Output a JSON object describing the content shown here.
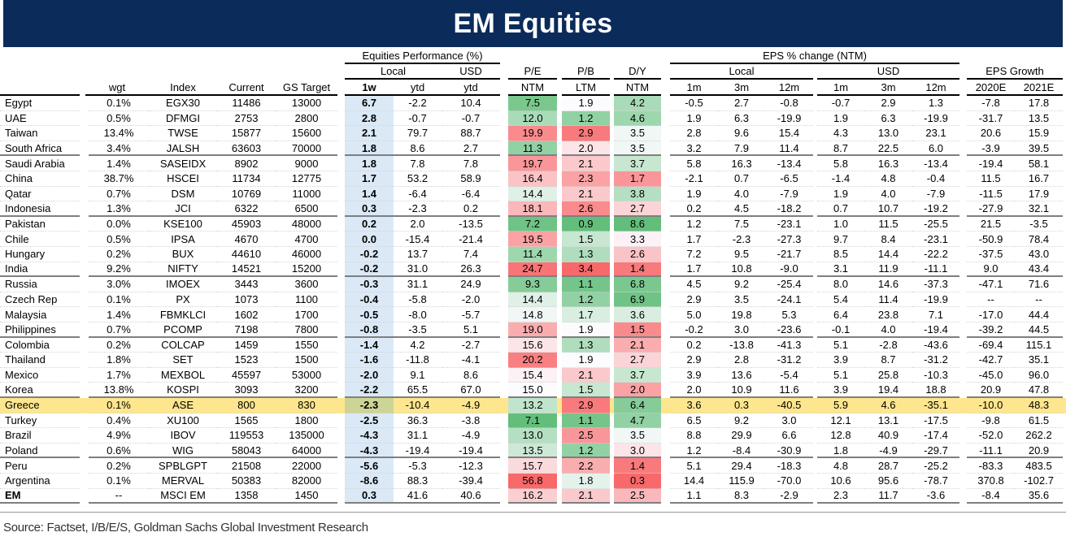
{
  "title": "EM Equities",
  "header": {
    "group_equities": "Equities Performance (%)",
    "group_eps_change": "EPS % change (NTM)",
    "sub_local": "Local",
    "sub_usd": "USD",
    "sub_pe": "P/E",
    "sub_pb": "P/B",
    "sub_dy": "D/Y",
    "sub_eps_local": "Local",
    "sub_eps_usd": "USD",
    "sub_eps_growth": "EPS Growth",
    "columns": [
      "",
      "wgt",
      "Index",
      "Current",
      "GS Target",
      "1w",
      "ytd",
      "ytd",
      "NTM",
      "LTM",
      "NTM",
      "1m",
      "3m",
      "12m",
      "1m",
      "3m",
      "12m",
      "2020E",
      "2021E"
    ]
  },
  "colors": {
    "title_bg": "#0b2b5a",
    "heat_good": "#63be7b",
    "heat_mid": "#fcfcff",
    "heat_bad": "#f8696b",
    "week_bg": "#dbe9f7",
    "highlight": "#fde68e"
  },
  "chart_data": {
    "type": "table",
    "heatmap_columns": {
      "P/E NTM": "low-green",
      "P/B LTM": "low-green",
      "D/Y NTM": "high-green"
    },
    "highlighted_row": "Greece",
    "rows": [
      [
        "Egypt",
        "0.1%",
        "EGX30",
        "11486",
        "13000",
        "6.7",
        "-2.2",
        "10.4",
        "7.5",
        "1.9",
        "4.2",
        "-0.5",
        "2.7",
        "-0.8",
        "-0.7",
        "2.9",
        "1.3",
        "-7.8",
        "17.8"
      ],
      [
        "UAE",
        "0.5%",
        "DFMGI",
        "2753",
        "2800",
        "2.8",
        "-0.7",
        "-0.7",
        "12.0",
        "1.2",
        "4.6",
        "1.9",
        "6.3",
        "-19.9",
        "1.9",
        "6.3",
        "-19.9",
        "-31.7",
        "13.5"
      ],
      [
        "Taiwan",
        "13.4%",
        "TWSE",
        "15877",
        "15600",
        "2.1",
        "79.7",
        "88.7",
        "19.9",
        "2.9",
        "3.5",
        "2.8",
        "9.6",
        "15.4",
        "4.3",
        "13.0",
        "23.1",
        "20.6",
        "15.9"
      ],
      [
        "South Africa",
        "3.4%",
        "JALSH",
        "63603",
        "70000",
        "1.8",
        "8.6",
        "2.7",
        "11.3",
        "2.0",
        "3.5",
        "3.2",
        "7.9",
        "11.4",
        "8.7",
        "22.5",
        "6.0",
        "-3.9",
        "39.5"
      ],
      [
        "Saudi Arabia",
        "1.4%",
        "SASEIDX",
        "8902",
        "9000",
        "1.8",
        "7.8",
        "7.8",
        "19.7",
        "2.1",
        "3.7",
        "5.8",
        "16.3",
        "-13.4",
        "5.8",
        "16.3",
        "-13.4",
        "-19.4",
        "58.1"
      ],
      [
        "China",
        "38.7%",
        "HSCEI",
        "11734",
        "12775",
        "1.7",
        "53.2",
        "58.9",
        "16.4",
        "2.3",
        "1.7",
        "-2.1",
        "0.7",
        "-6.5",
        "-1.4",
        "4.8",
        "-0.4",
        "11.5",
        "16.7"
      ],
      [
        "Qatar",
        "0.7%",
        "DSM",
        "10769",
        "11000",
        "1.4",
        "-6.4",
        "-6.4",
        "14.4",
        "2.1",
        "3.8",
        "1.9",
        "4.0",
        "-7.9",
        "1.9",
        "4.0",
        "-7.9",
        "-11.5",
        "17.9"
      ],
      [
        "Indonesia",
        "1.3%",
        "JCI",
        "6322",
        "6500",
        "0.3",
        "-2.3",
        "0.2",
        "18.1",
        "2.6",
        "2.7",
        "0.2",
        "4.5",
        "-18.2",
        "0.7",
        "10.7",
        "-19.2",
        "-27.9",
        "32.1"
      ],
      [
        "Pakistan",
        "0.0%",
        "KSE100",
        "45903",
        "48000",
        "0.2",
        "2.0",
        "-13.5",
        "7.2",
        "0.9",
        "8.6",
        "1.2",
        "7.5",
        "-23.1",
        "1.0",
        "11.5",
        "-25.5",
        "21.5",
        "-3.5"
      ],
      [
        "Chile",
        "0.5%",
        "IPSA",
        "4670",
        "4700",
        "0.0",
        "-15.4",
        "-21.4",
        "19.5",
        "1.5",
        "3.3",
        "1.7",
        "-2.3",
        "-27.3",
        "9.7",
        "8.4",
        "-23.1",
        "-50.9",
        "78.4"
      ],
      [
        "Hungary",
        "0.2%",
        "BUX",
        "44610",
        "46000",
        "-0.2",
        "13.7",
        "7.4",
        "11.4",
        "1.3",
        "2.6",
        "7.2",
        "9.5",
        "-21.7",
        "8.5",
        "14.4",
        "-22.2",
        "-37.5",
        "43.0"
      ],
      [
        "India",
        "9.2%",
        "NIFTY",
        "14521",
        "15200",
        "-0.2",
        "31.0",
        "26.3",
        "24.7",
        "3.4",
        "1.4",
        "1.7",
        "10.8",
        "-9.0",
        "3.1",
        "11.9",
        "-11.1",
        "9.0",
        "43.4"
      ],
      [
        "Russia",
        "3.0%",
        "IMOEX",
        "3443",
        "3600",
        "-0.3",
        "31.1",
        "24.9",
        "9.3",
        "1.1",
        "6.8",
        "4.5",
        "9.2",
        "-25.4",
        "8.0",
        "14.6",
        "-37.3",
        "-47.1",
        "71.6"
      ],
      [
        "Czech Rep",
        "0.1%",
        "PX",
        "1073",
        "1100",
        "-0.4",
        "-5.8",
        "-2.0",
        "14.4",
        "1.2",
        "6.9",
        "2.9",
        "3.5",
        "-24.1",
        "5.4",
        "11.4",
        "-19.9",
        "--",
        "--"
      ],
      [
        "Malaysia",
        "1.4%",
        "FBMKLCI",
        "1602",
        "1700",
        "-0.5",
        "-8.0",
        "-5.7",
        "14.8",
        "1.7",
        "3.6",
        "5.0",
        "19.8",
        "5.3",
        "6.4",
        "23.8",
        "7.1",
        "-17.0",
        "44.4"
      ],
      [
        "Philippines",
        "0.7%",
        "PCOMP",
        "7198",
        "7800",
        "-0.8",
        "-3.5",
        "5.1",
        "19.0",
        "1.9",
        "1.5",
        "-0.2",
        "3.0",
        "-23.6",
        "-0.1",
        "4.0",
        "-19.4",
        "-39.2",
        "44.5"
      ],
      [
        "Colombia",
        "0.2%",
        "COLCAP",
        "1459",
        "1550",
        "-1.4",
        "4.2",
        "-2.7",
        "15.6",
        "1.3",
        "2.1",
        "0.2",
        "-13.8",
        "-41.3",
        "5.1",
        "-2.8",
        "-43.6",
        "-69.4",
        "115.1"
      ],
      [
        "Thailand",
        "1.8%",
        "SET",
        "1523",
        "1500",
        "-1.6",
        "-11.8",
        "-4.1",
        "20.2",
        "1.9",
        "2.7",
        "2.9",
        "2.8",
        "-31.2",
        "3.9",
        "8.7",
        "-31.2",
        "-42.7",
        "35.1"
      ],
      [
        "Mexico",
        "1.7%",
        "MEXBOL",
        "45597",
        "53000",
        "-2.0",
        "9.1",
        "8.6",
        "15.4",
        "2.1",
        "3.7",
        "3.9",
        "13.6",
        "-5.4",
        "5.1",
        "25.8",
        "-10.3",
        "-45.0",
        "96.0"
      ],
      [
        "Korea",
        "13.8%",
        "KOSPI",
        "3093",
        "3200",
        "-2.2",
        "65.5",
        "67.0",
        "15.0",
        "1.5",
        "2.0",
        "2.0",
        "10.9",
        "11.6",
        "3.9",
        "19.4",
        "18.8",
        "20.9",
        "47.8"
      ],
      [
        "Greece",
        "0.1%",
        "ASE",
        "800",
        "830",
        "-2.3",
        "-10.4",
        "-4.9",
        "13.2",
        "2.9",
        "6.4",
        "3.6",
        "0.3",
        "-40.5",
        "5.9",
        "4.6",
        "-35.1",
        "-10.0",
        "48.3"
      ],
      [
        "Turkey",
        "0.4%",
        "XU100",
        "1565",
        "1800",
        "-2.5",
        "36.3",
        "-3.8",
        "7.1",
        "1.1",
        "4.7",
        "6.5",
        "9.2",
        "3.0",
        "12.1",
        "13.1",
        "-17.5",
        "-9.8",
        "61.5"
      ],
      [
        "Brazil",
        "4.9%",
        "IBOV",
        "119553",
        "135000",
        "-4.3",
        "31.1",
        "-4.9",
        "13.0",
        "2.5",
        "3.5",
        "8.8",
        "29.9",
        "6.6",
        "12.8",
        "40.9",
        "-17.4",
        "-52.0",
        "262.2"
      ],
      [
        "Poland",
        "0.6%",
        "WIG",
        "58043",
        "64000",
        "-4.3",
        "-19.4",
        "-19.4",
        "13.5",
        "1.2",
        "3.0",
        "1.2",
        "-8.4",
        "-30.9",
        "1.8",
        "-4.9",
        "-29.7",
        "-11.1",
        "20.9"
      ],
      [
        "Peru",
        "0.2%",
        "SPBLGPT",
        "21508",
        "22000",
        "-5.6",
        "-5.3",
        "-12.3",
        "15.7",
        "2.2",
        "1.4",
        "5.1",
        "29.4",
        "-18.3",
        "4.8",
        "28.7",
        "-25.2",
        "-83.3",
        "483.5"
      ],
      [
        "Argentina",
        "0.1%",
        "MERVAL",
        "50383",
        "82000",
        "-8.6",
        "88.3",
        "-39.4",
        "56.8",
        "1.8",
        "0.3",
        "14.4",
        "115.9",
        "-70.0",
        "10.6",
        "95.6",
        "-78.7",
        "370.8",
        "-102.7"
      ],
      [
        "EM",
        "--",
        "MSCI EM",
        "1358",
        "1450",
        "0.3",
        "41.6",
        "40.6",
        "16.2",
        "2.1",
        "2.5",
        "1.1",
        "8.3",
        "-2.9",
        "2.3",
        "11.7",
        "-3.6",
        "-8.4",
        "35.6"
      ]
    ]
  },
  "source": "Source: Factset, I/B/E/S, Goldman Sachs Global Investment Research"
}
